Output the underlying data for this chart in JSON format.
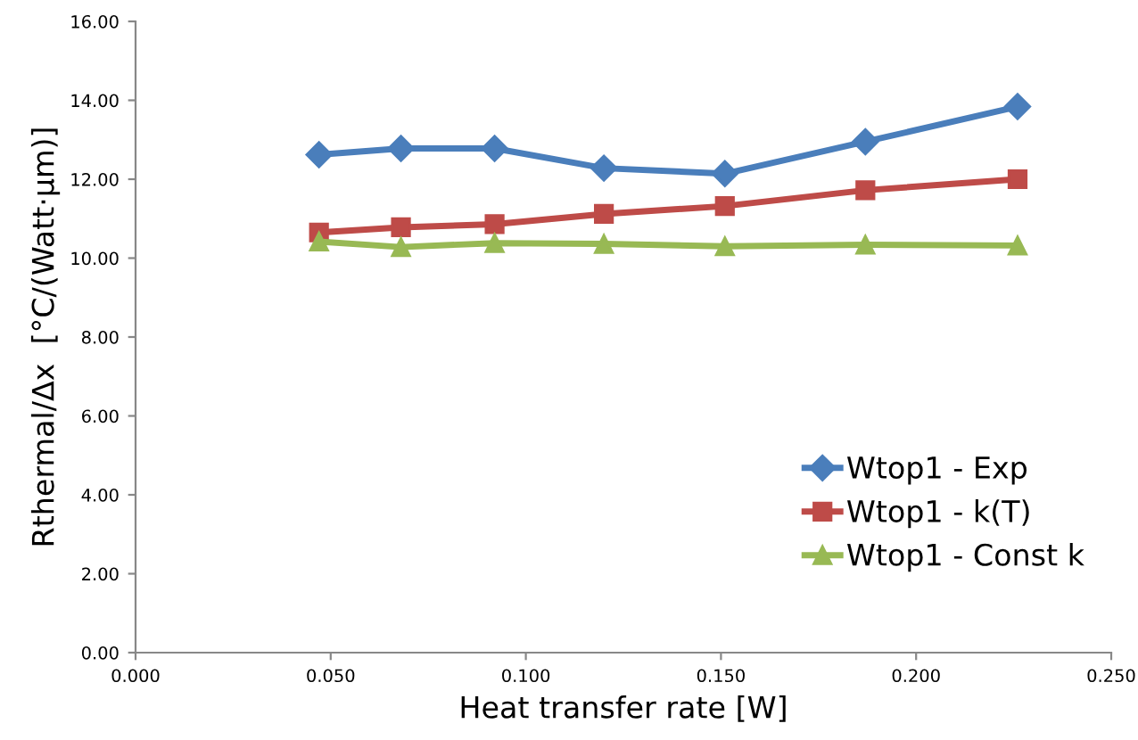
{
  "chart_data": {
    "type": "line",
    "xlabel": "Heat transfer rate [W]",
    "ylabel": "Rthermal/Δx  [°C/(Watt·μm)]",
    "x": [
      0.047,
      0.068,
      0.092,
      0.12,
      0.151,
      0.187,
      0.226
    ],
    "series": [
      {
        "name": "Wtop1 - Exp",
        "color": "#4a7ebb",
        "marker": "diamond",
        "values": [
          12.62,
          12.78,
          12.78,
          12.28,
          12.14,
          12.95,
          13.84
        ]
      },
      {
        "name": "Wtop1 - k(T)",
        "color": "#be4b48",
        "marker": "square",
        "values": [
          10.65,
          10.78,
          10.86,
          11.12,
          11.32,
          11.72,
          12.0
        ]
      },
      {
        "name": "Wtop1 - Const k",
        "color": "#98b954",
        "marker": "triangle",
        "values": [
          10.42,
          10.28,
          10.38,
          10.36,
          10.3,
          10.34,
          10.32
        ]
      }
    ],
    "xlim": [
      0,
      0.25
    ],
    "ylim": [
      0,
      16
    ],
    "xticks": [
      {
        "value": 0,
        "label": "0.000"
      },
      {
        "value": 0.05,
        "label": "0.050"
      },
      {
        "value": 0.1,
        "label": "0.100"
      },
      {
        "value": 0.15,
        "label": "0.150"
      },
      {
        "value": 0.2,
        "label": "0.200"
      },
      {
        "value": 0.25,
        "label": "0.250"
      }
    ],
    "yticks": [
      {
        "value": 0,
        "label": "0.00"
      },
      {
        "value": 2,
        "label": "2.00"
      },
      {
        "value": 4,
        "label": "4.00"
      },
      {
        "value": 6,
        "label": "6.00"
      },
      {
        "value": 8,
        "label": "8.00"
      },
      {
        "value": 10,
        "label": "10.00"
      },
      {
        "value": 12,
        "label": "12.00"
      },
      {
        "value": 14,
        "label": "14.00"
      },
      {
        "value": 16,
        "label": "16.00"
      }
    ],
    "legend": "right",
    "grid": false
  }
}
